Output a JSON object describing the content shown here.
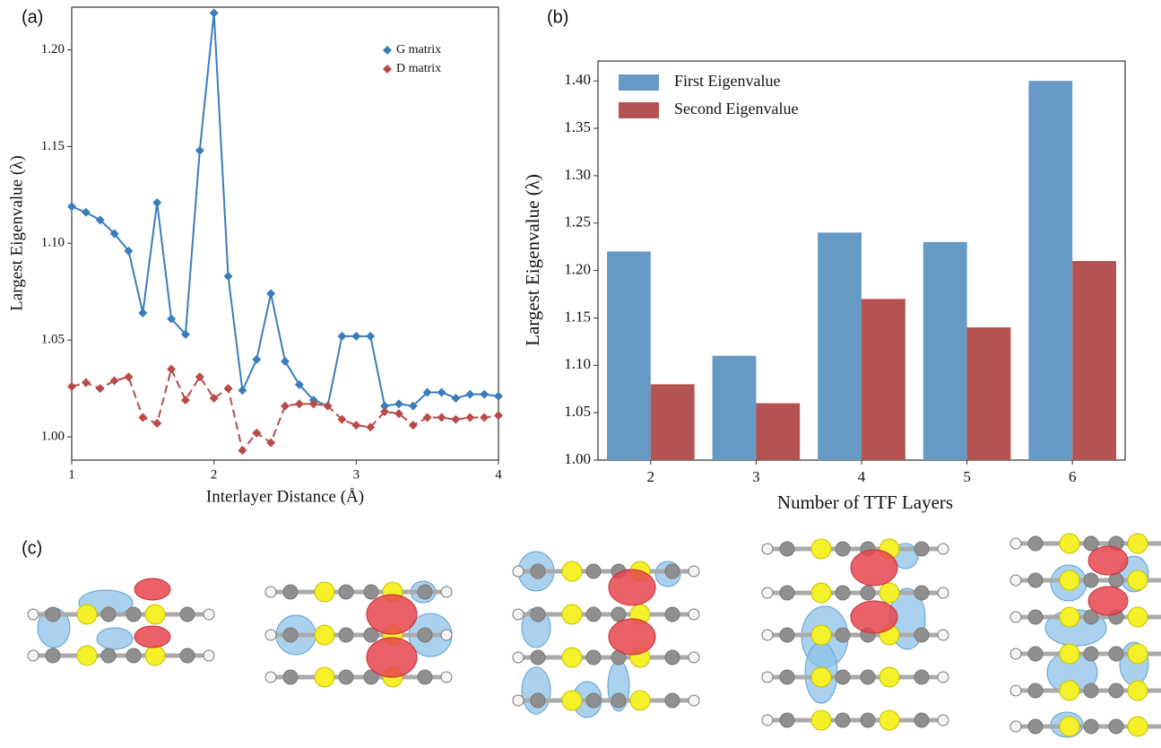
{
  "panels": [
    {
      "label": "(a)"
    },
    {
      "label": "(b)"
    },
    {
      "label": "(c)"
    }
  ],
  "chart_data": [
    {
      "type": "line",
      "xlabel": "Interlayer Distance (Å)",
      "ylabel": "Largest Eigenvalue (λ)",
      "x": [
        1.0,
        1.1,
        1.2,
        1.3,
        1.4,
        1.5,
        1.6,
        1.7,
        1.8,
        1.9,
        2.0,
        2.1,
        2.2,
        2.3,
        2.4,
        2.5,
        2.6,
        2.7,
        2.8,
        2.9,
        3.0,
        3.1,
        3.2,
        3.3,
        3.4,
        3.5,
        3.6,
        3.7,
        3.8,
        3.9,
        4.0
      ],
      "series": [
        {
          "name": "G matrix",
          "color": "#3a7dbd",
          "linestyle": "solid",
          "marker": "diamond",
          "values": [
            1.119,
            1.116,
            1.112,
            1.105,
            1.096,
            1.064,
            1.121,
            1.061,
            1.053,
            1.148,
            1.219,
            1.083,
            1.024,
            1.04,
            1.074,
            1.039,
            1.027,
            1.019,
            1.016,
            1.052,
            1.052,
            1.052,
            1.016,
            1.017,
            1.016,
            1.023,
            1.023,
            1.02,
            1.022,
            1.022,
            1.021
          ]
        },
        {
          "name": "D matrix",
          "color": "#b84a48",
          "linestyle": "dashed",
          "marker": "diamond",
          "values": [
            1.026,
            1.028,
            1.025,
            1.029,
            1.031,
            1.01,
            1.007,
            1.035,
            1.019,
            1.031,
            1.02,
            1.025,
            0.993,
            1.002,
            0.997,
            1.016,
            1.017,
            1.017,
            1.016,
            1.009,
            1.006,
            1.005,
            1.013,
            1.012,
            1.006,
            1.01,
            1.01,
            1.009,
            1.01,
            1.01,
            1.011
          ]
        }
      ],
      "xlim": [
        1,
        4
      ],
      "xticks": [
        1,
        2,
        3,
        4
      ],
      "ylim": [
        0.988,
        1.222
      ],
      "yticks": [
        {
          "value": 1,
          "label": "1.00"
        },
        1.05,
        {
          "value": 1.1,
          "label": "1.10"
        },
        1.15,
        {
          "value": 1.2,
          "label": "1.20"
        }
      ],
      "legend": "upper right"
    },
    {
      "type": "bar",
      "xlabel": "Number of TTF Layers",
      "ylabel": "Largest Eigenvalue (λ)",
      "categories": [
        2,
        3,
        4,
        5,
        6
      ],
      "series": [
        {
          "name": "First Eigenvalue",
          "color": "#6699c4",
          "values": [
            1.22,
            1.11,
            1.24,
            1.23,
            1.4
          ]
        },
        {
          "name": "Second Eigenvalue",
          "color": "#b55252",
          "values": [
            1.08,
            1.06,
            1.17,
            1.14,
            1.21
          ]
        }
      ],
      "ylim": [
        1.0,
        1.421
      ],
      "yticks": [
        {
          "value": 1,
          "label": "1.00"
        },
        1.05,
        {
          "value": 1.1,
          "label": "1.10"
        },
        1.15,
        {
          "value": 1.2,
          "label": "1.20"
        },
        1.25,
        {
          "value": 1.3,
          "label": "1.30"
        },
        1.35,
        {
          "value": 1.4,
          "label": "1.40"
        }
      ],
      "legend": "upper left"
    }
  ]
}
